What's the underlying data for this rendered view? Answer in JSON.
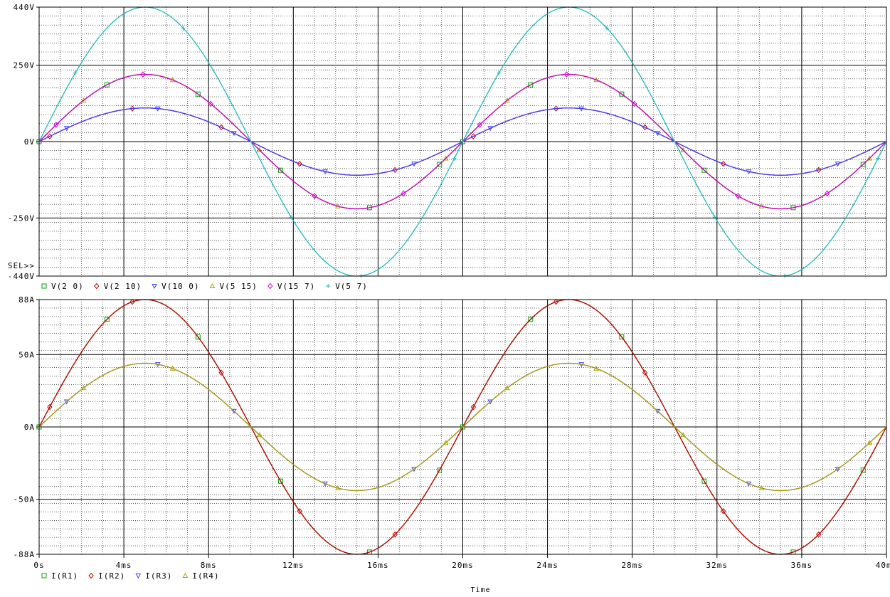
{
  "chart_data": [
    {
      "type": "line",
      "name": "voltage-plot",
      "sel_marker": "SEL>>",
      "x_unit": "ms",
      "xlim": [
        0,
        40
      ],
      "ylim": [
        -440,
        440
      ],
      "y_ticks": [
        {
          "value": 440,
          "label": "440V"
        },
        {
          "value": 250,
          "label": "250V"
        },
        {
          "value": 0,
          "label": "0V"
        },
        {
          "value": -250,
          "label": "-250V"
        },
        {
          "value": -440,
          "label": "-440V"
        }
      ],
      "grid": true,
      "legend_position": "bottom-left",
      "series": [
        {
          "name": "V(2 0)",
          "color": "#00a000",
          "marker": "square",
          "amplitude": 220,
          "frequency_hz": 50,
          "points": [
            {
              "x": 0,
              "y": 0
            },
            {
              "x": 5,
              "y": 220
            },
            {
              "x": 10,
              "y": 0
            },
            {
              "x": 15,
              "y": -220
            },
            {
              "x": 20,
              "y": 0
            },
            {
              "x": 25,
              "y": 220
            },
            {
              "x": 30,
              "y": 0
            },
            {
              "x": 35,
              "y": -220
            },
            {
              "x": 40,
              "y": 0
            }
          ]
        },
        {
          "name": "V(2 10)",
          "color": "#c00000",
          "marker": "diamond",
          "amplitude": 110,
          "frequency_hz": 50,
          "points": [
            {
              "x": 0,
              "y": 0
            },
            {
              "x": 5,
              "y": 110
            },
            {
              "x": 10,
              "y": 0
            },
            {
              "x": 15,
              "y": -110
            },
            {
              "x": 20,
              "y": 0
            },
            {
              "x": 25,
              "y": 110
            },
            {
              "x": 30,
              "y": 0
            },
            {
              "x": 35,
              "y": -110
            },
            {
              "x": 40,
              "y": 0
            }
          ]
        },
        {
          "name": "V(10 0)",
          "color": "#4040ff",
          "marker": "triangle-down",
          "amplitude": 110,
          "frequency_hz": 50,
          "points": [
            {
              "x": 0,
              "y": 0
            },
            {
              "x": 5,
              "y": 110
            },
            {
              "x": 10,
              "y": 0
            },
            {
              "x": 15,
              "y": -110
            },
            {
              "x": 20,
              "y": 0
            },
            {
              "x": 25,
              "y": 110
            },
            {
              "x": 30,
              "y": 0
            },
            {
              "x": 35,
              "y": -110
            },
            {
              "x": 40,
              "y": 0
            }
          ]
        },
        {
          "name": "V(5 15)",
          "color": "#b0a000",
          "marker": "triangle-up",
          "amplitude": 220,
          "frequency_hz": 50,
          "points": [
            {
              "x": 0,
              "y": 0
            },
            {
              "x": 5,
              "y": 220
            },
            {
              "x": 10,
              "y": 0
            },
            {
              "x": 15,
              "y": -220
            },
            {
              "x": 20,
              "y": 0
            },
            {
              "x": 25,
              "y": 220
            },
            {
              "x": 30,
              "y": 0
            },
            {
              "x": 35,
              "y": -220
            },
            {
              "x": 40,
              "y": 0
            }
          ]
        },
        {
          "name": "V(15 7)",
          "color": "#d000d0",
          "marker": "diamond",
          "amplitude": 220,
          "frequency_hz": 50,
          "points": [
            {
              "x": 0,
              "y": 0
            },
            {
              "x": 5,
              "y": 220
            },
            {
              "x": 10,
              "y": 0
            },
            {
              "x": 15,
              "y": -220
            },
            {
              "x": 20,
              "y": 0
            },
            {
              "x": 25,
              "y": 220
            },
            {
              "x": 30,
              "y": 0
            },
            {
              "x": 35,
              "y": -220
            },
            {
              "x": 40,
              "y": 0
            }
          ]
        },
        {
          "name": "V(5 7)",
          "color": "#20b8b8",
          "marker": "plus",
          "amplitude": 440,
          "frequency_hz": 50,
          "points": [
            {
              "x": 0,
              "y": 0
            },
            {
              "x": 5,
              "y": 440
            },
            {
              "x": 10,
              "y": 0
            },
            {
              "x": 15,
              "y": -440
            },
            {
              "x": 20,
              "y": 0
            },
            {
              "x": 25,
              "y": 440
            },
            {
              "x": 30,
              "y": 0
            },
            {
              "x": 35,
              "y": -440
            },
            {
              "x": 40,
              "y": 0
            }
          ]
        }
      ]
    },
    {
      "type": "line",
      "name": "current-plot",
      "xlabel": "Time",
      "x_unit": "ms",
      "xlim": [
        0,
        40
      ],
      "ylim": [
        -88,
        88
      ],
      "x_ticks": [
        {
          "value": 0,
          "label": "0s"
        },
        {
          "value": 4,
          "label": "4ms"
        },
        {
          "value": 8,
          "label": "8ms"
        },
        {
          "value": 12,
          "label": "12ms"
        },
        {
          "value": 16,
          "label": "16ms"
        },
        {
          "value": 20,
          "label": "20ms"
        },
        {
          "value": 24,
          "label": "24ms"
        },
        {
          "value": 28,
          "label": "28ms"
        },
        {
          "value": 32,
          "label": "32ms"
        },
        {
          "value": 36,
          "label": "36ms"
        },
        {
          "value": 40,
          "label": "40ms"
        }
      ],
      "y_ticks": [
        {
          "value": 88,
          "label": "88A"
        },
        {
          "value": 50,
          "label": "50A"
        },
        {
          "value": 0,
          "label": "0A"
        },
        {
          "value": -50,
          "label": "-50A"
        },
        {
          "value": -88,
          "label": "-88A"
        }
      ],
      "grid": true,
      "legend_position": "bottom-left",
      "series": [
        {
          "name": "I(R1)",
          "color": "#00a000",
          "marker": "square",
          "amplitude": 88,
          "frequency_hz": 50,
          "points": [
            {
              "x": 0,
              "y": 0
            },
            {
              "x": 5,
              "y": 88
            },
            {
              "x": 10,
              "y": 0
            },
            {
              "x": 15,
              "y": -88
            },
            {
              "x": 20,
              "y": 0
            },
            {
              "x": 25,
              "y": 88
            },
            {
              "x": 30,
              "y": 0
            },
            {
              "x": 35,
              "y": -88
            },
            {
              "x": 40,
              "y": 0
            }
          ]
        },
        {
          "name": "I(R2)",
          "color": "#c00000",
          "marker": "diamond",
          "amplitude": 88,
          "frequency_hz": 50,
          "points": [
            {
              "x": 0,
              "y": 0
            },
            {
              "x": 5,
              "y": 88
            },
            {
              "x": 10,
              "y": 0
            },
            {
              "x": 15,
              "y": -88
            },
            {
              "x": 20,
              "y": 0
            },
            {
              "x": 25,
              "y": 88
            },
            {
              "x": 30,
              "y": 0
            },
            {
              "x": 35,
              "y": -88
            },
            {
              "x": 40,
              "y": 0
            }
          ]
        },
        {
          "name": "I(R3)",
          "color": "#4040ff",
          "marker": "triangle-down",
          "amplitude": 44,
          "frequency_hz": 50,
          "points": [
            {
              "x": 0,
              "y": 0
            },
            {
              "x": 5,
              "y": 44
            },
            {
              "x": 10,
              "y": 0
            },
            {
              "x": 15,
              "y": -44
            },
            {
              "x": 20,
              "y": 0
            },
            {
              "x": 25,
              "y": 44
            },
            {
              "x": 30,
              "y": 0
            },
            {
              "x": 35,
              "y": -44
            },
            {
              "x": 40,
              "y": 0
            }
          ]
        },
        {
          "name": "I(R4)",
          "color": "#b0a000",
          "marker": "triangle-up",
          "amplitude": 44,
          "frequency_hz": 50,
          "points": [
            {
              "x": 0,
              "y": 0
            },
            {
              "x": 5,
              "y": 44
            },
            {
              "x": 10,
              "y": 0
            },
            {
              "x": 15,
              "y": -44
            },
            {
              "x": 20,
              "y": 0
            },
            {
              "x": 25,
              "y": 44
            },
            {
              "x": 30,
              "y": 0
            },
            {
              "x": 35,
              "y": -44
            },
            {
              "x": 40,
              "y": 0
            }
          ]
        }
      ]
    }
  ]
}
